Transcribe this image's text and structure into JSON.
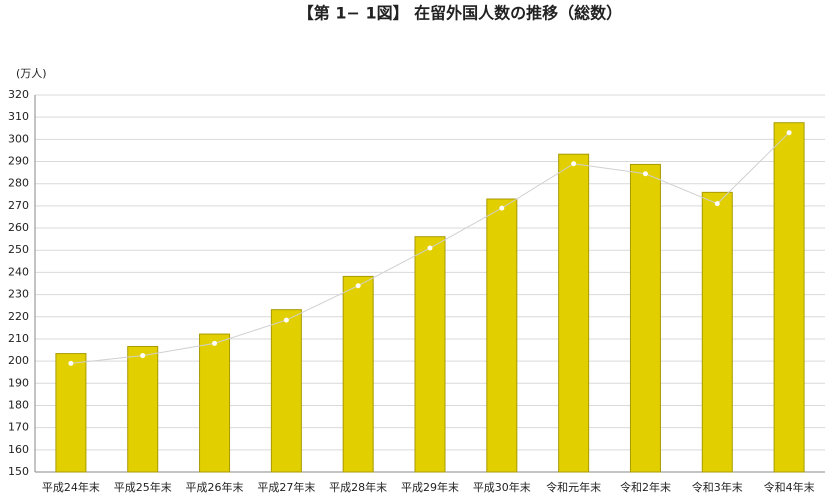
{
  "chart_data": {
    "type": "bar-line",
    "title": "【第 1− 1図】 在留外国人数の推移（総数）",
    "y_label": "(万人)",
    "categories": [
      "平成24年末",
      "平成25年末",
      "平成26年末",
      "平成27年末",
      "平成28年末",
      "平成29年末",
      "平成30年末",
      "令和元年末",
      "令和2年末",
      "令和3年末",
      "令和4年末"
    ],
    "series": [
      {
        "type": "bar",
        "color": "#e2cf00",
        "values": [
          203.4,
          206.6,
          212.2,
          223.2,
          238.2,
          256.1,
          273.1,
          293.3,
          288.7,
          276.1,
          307.5
        ]
      },
      {
        "type": "line",
        "color": "#d0d0d0",
        "values": [
          199,
          202.5,
          208,
          218.5,
          234,
          251,
          269,
          289,
          284.5,
          271,
          303
        ]
      }
    ],
    "ylim": [
      150,
      320
    ],
    "yticks": [
      150,
      160,
      170,
      180,
      190,
      200,
      210,
      220,
      230,
      240,
      250,
      260,
      270,
      280,
      290,
      300,
      310,
      320
    ],
    "grid": true
  }
}
